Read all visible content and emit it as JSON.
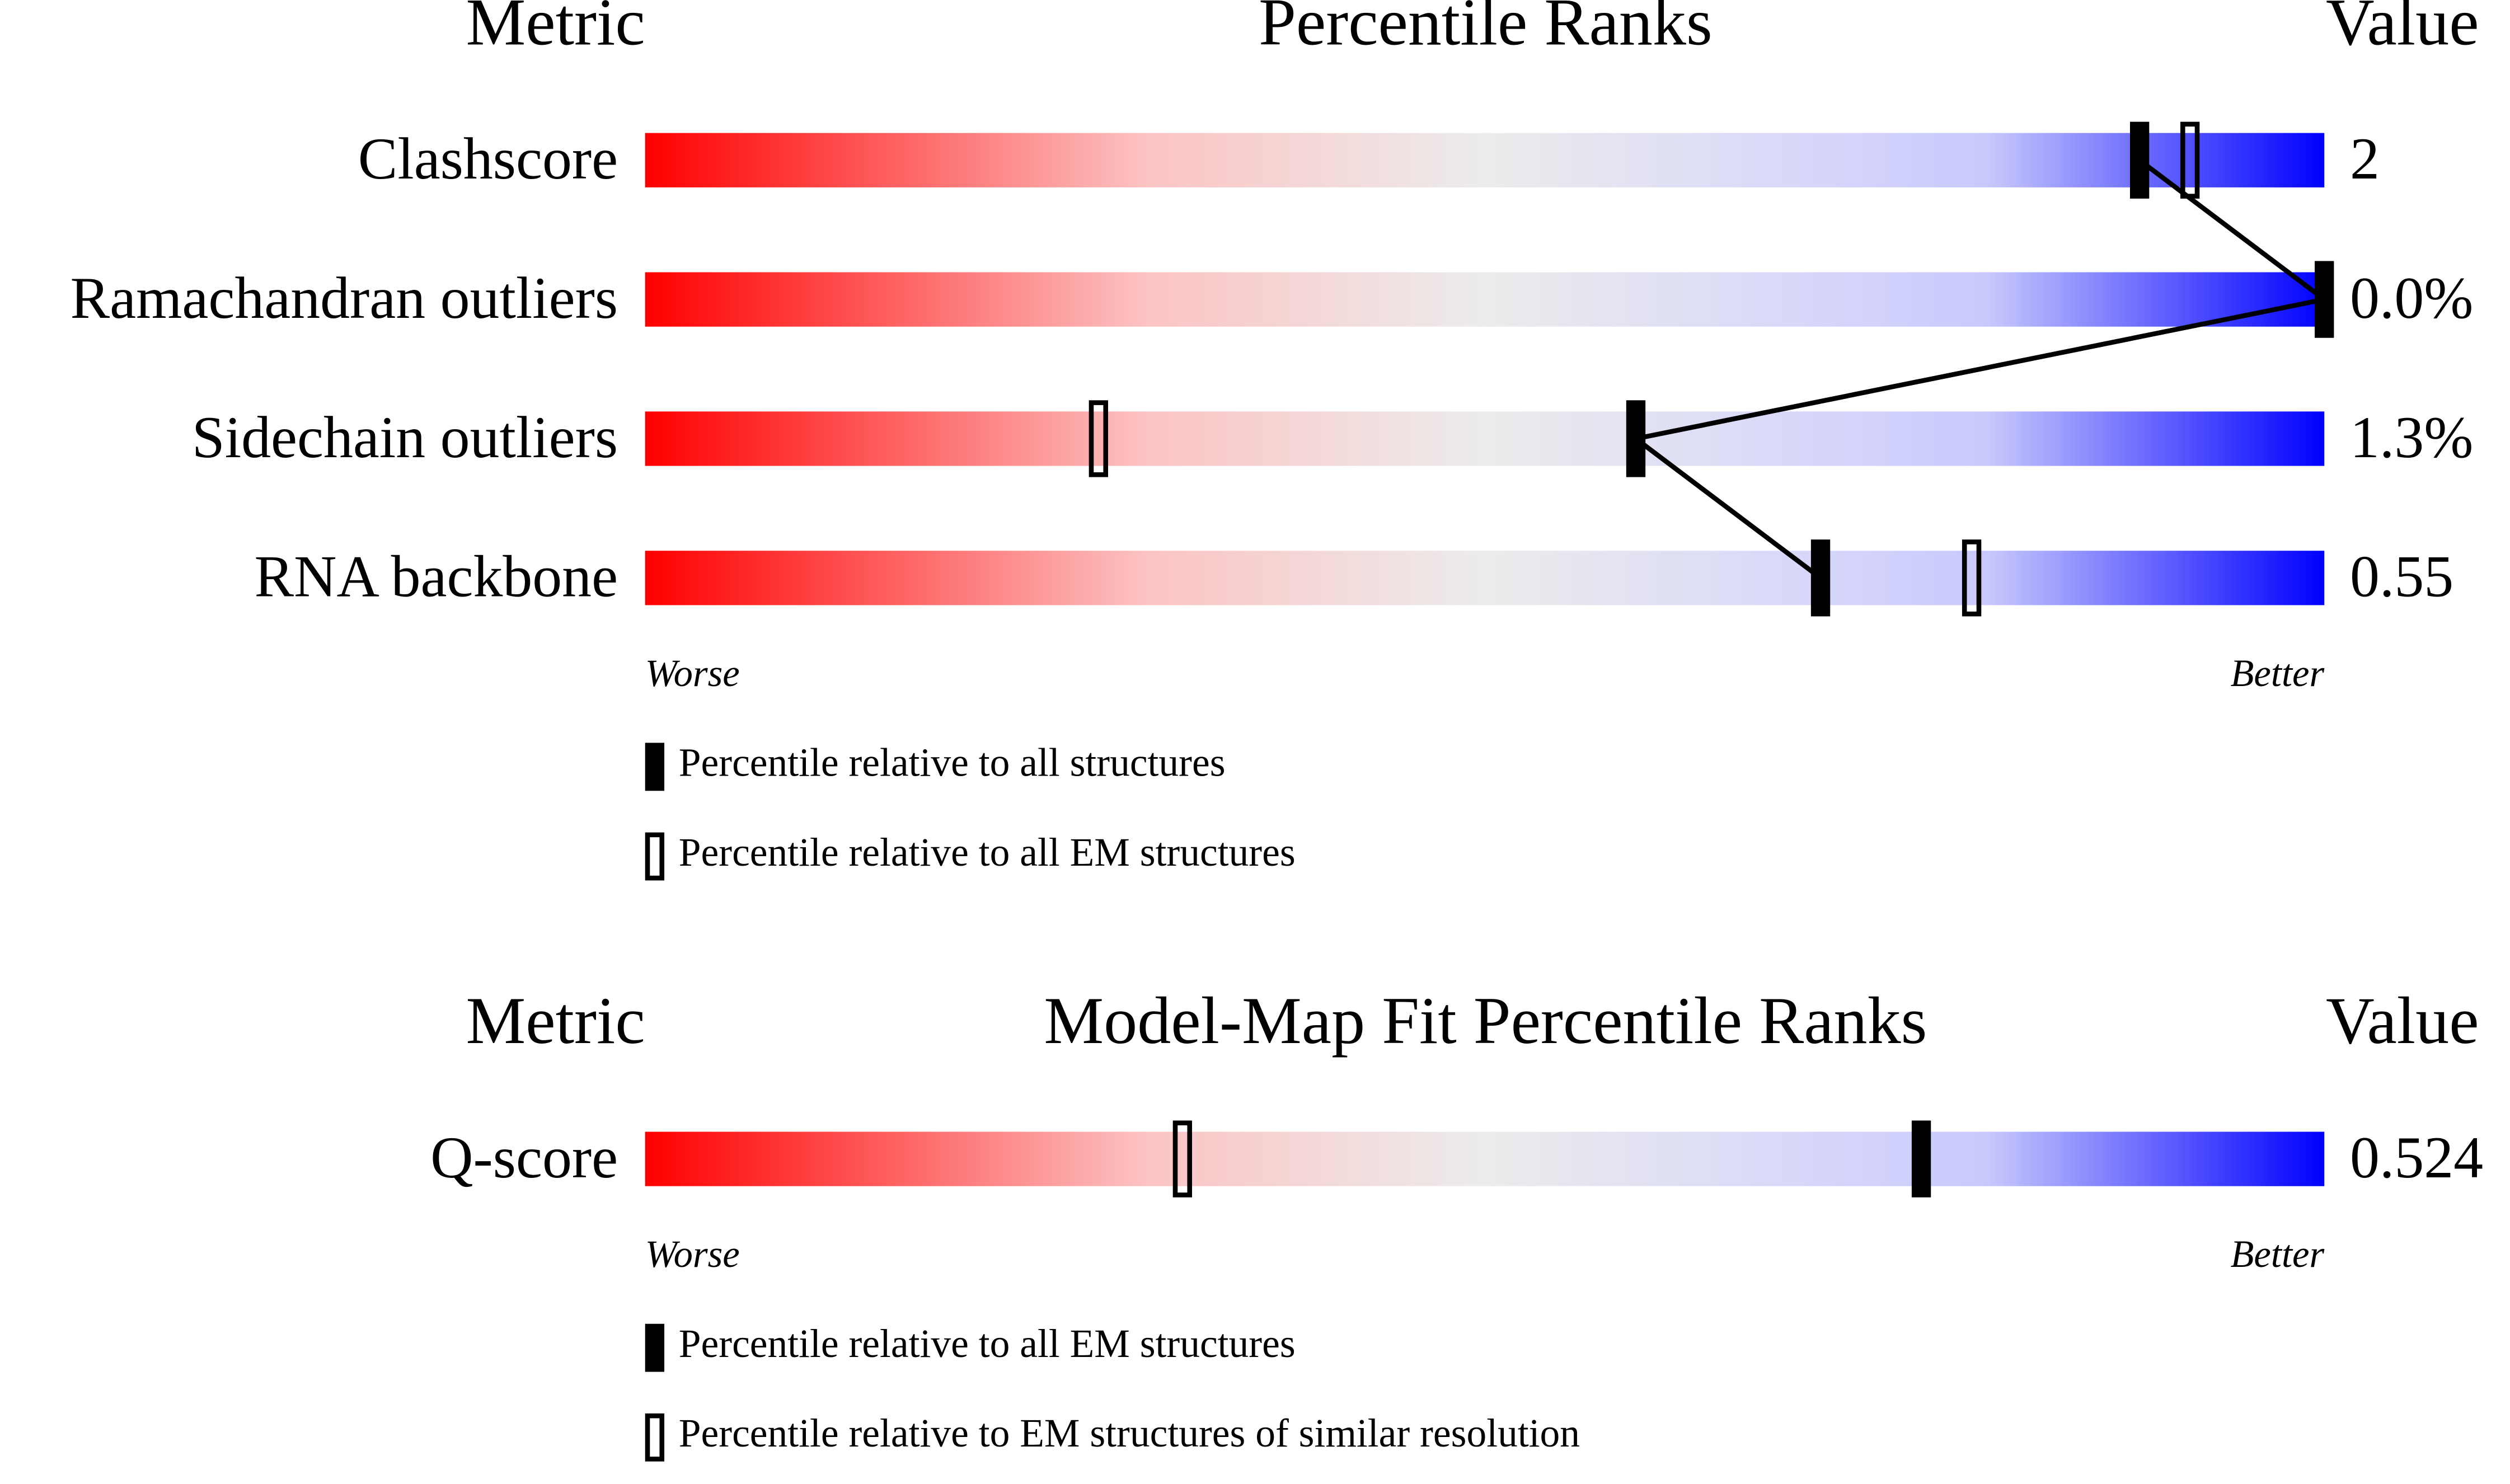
{
  "chart_data": [
    {
      "type": "percentile_slider",
      "metric_header": "Metric",
      "title": "Percentile Ranks",
      "value_header": "Value",
      "categories": [
        "Clashscore",
        "Ramachandran outliers",
        "Sidechain outliers",
        "RNA backbone"
      ],
      "values": [
        "2",
        "0.0%",
        "1.3%",
        "0.55"
      ],
      "xlim": [
        0,
        100
      ],
      "low_label": "Worse",
      "high_label": "Better",
      "connect": true,
      "series": [
        {
          "name": "Percentile relative to all structures",
          "style": "filled",
          "color": "#000000",
          "values": [
            89,
            100,
            59,
            70
          ]
        },
        {
          "name": "Percentile relative to all EM structures",
          "style": "outline",
          "color": "#000000",
          "values": [
            92,
            null,
            27,
            79
          ]
        }
      ]
    },
    {
      "type": "percentile_slider",
      "metric_header": "Metric",
      "title": "Model-Map Fit Percentile Ranks",
      "value_header": "Value",
      "categories": [
        "Q-score"
      ],
      "values": [
        "0.524"
      ],
      "xlim": [
        0,
        100
      ],
      "low_label": "Worse",
      "high_label": "Better",
      "connect": true,
      "series": [
        {
          "name": "Percentile relative to all EM structures",
          "style": "filled",
          "color": "#000000",
          "values": [
            76
          ]
        },
        {
          "name": "Percentile relative to EM structures of similar resolution",
          "style": "outline",
          "color": "#000000",
          "values": [
            32
          ]
        }
      ]
    }
  ]
}
